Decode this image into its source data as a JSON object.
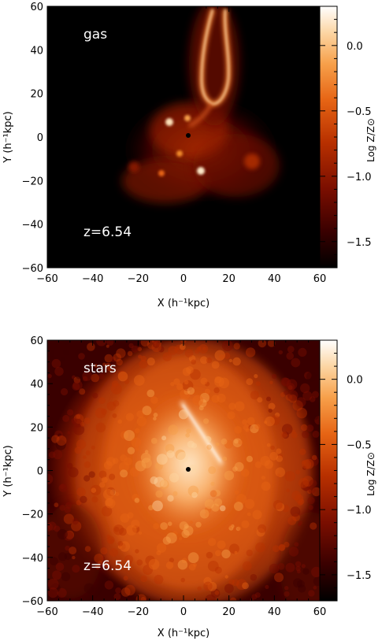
{
  "chart_data": [
    {
      "type": "heatmap",
      "panel_label": "gas",
      "redshift_label": "z=6.54",
      "xlabel": "X (h⁻¹kpc)",
      "ylabel": "Y (h⁻¹kpc)",
      "xlim": [
        -60,
        60
      ],
      "ylim": [
        -60,
        60
      ],
      "xticks": [
        -60,
        -40,
        -20,
        0,
        20,
        40,
        60
      ],
      "yticks": [
        -60,
        -40,
        -20,
        0,
        20,
        40,
        60
      ],
      "center_marker": [
        0,
        0
      ],
      "colorbar": {
        "label": "Log Z/Z⊙",
        "range": [
          -1.7,
          0.3
        ],
        "ticks": [
          0.0,
          -0.5,
          -1.0,
          -1.5
        ],
        "tick_labels": [
          "0.0",
          "−0.5",
          "−1.0",
          "−1.5"
        ]
      }
    },
    {
      "type": "heatmap",
      "panel_label": "stars",
      "redshift_label": "z=6.54",
      "xlabel": "X (h⁻¹kpc)",
      "ylabel": "Y (h⁻¹kpc)",
      "xlim": [
        -60,
        60
      ],
      "ylim": [
        -60,
        60
      ],
      "xticks": [
        -60,
        -40,
        -20,
        0,
        20,
        40,
        60
      ],
      "yticks": [
        -60,
        -40,
        -20,
        0,
        20,
        40,
        60
      ],
      "center_marker": [
        0,
        0
      ],
      "colorbar": {
        "label": "Log Z/Z⊙",
        "range": [
          -1.7,
          0.3
        ],
        "ticks": [
          0.0,
          -0.5,
          -1.0,
          -1.5
        ],
        "tick_labels": [
          "0.0",
          "−0.5",
          "−1.0",
          "−1.5"
        ]
      }
    }
  ],
  "colormap": [
    "#000000",
    "#3a0000",
    "#7a0e00",
    "#b83000",
    "#e66414",
    "#f7a04a",
    "#fcd6a4",
    "#ffffff"
  ]
}
